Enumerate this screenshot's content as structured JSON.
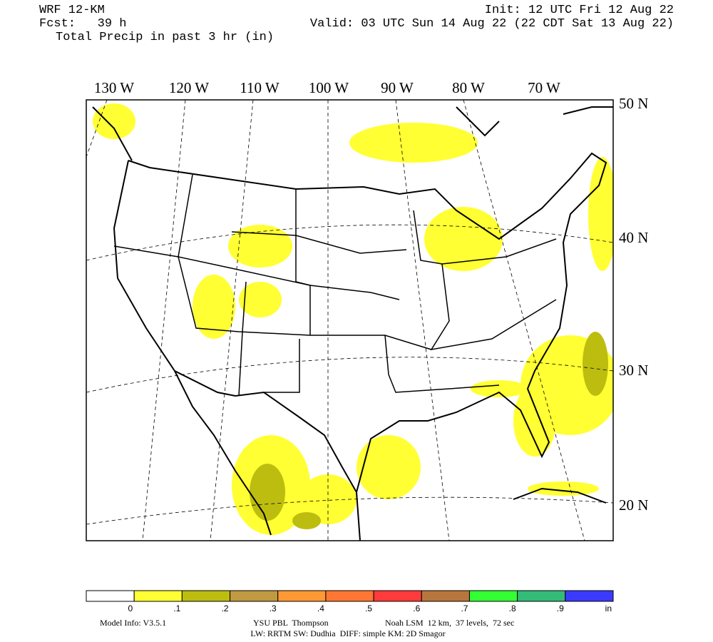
{
  "header": {
    "model": "WRF 12-KM",
    "forecast": "Fcst:   39 h",
    "field": "Total Precip in past 3 hr (in)",
    "init": "Init: 12 UTC Fri 12 Aug 22",
    "valid": "Valid: 03 UTC Sun 14 Aug 22 (22 CDT Sat 13 Aug 22)"
  },
  "map": {
    "longitudes": [
      "130 W",
      "120 W",
      "110 W",
      "100 W",
      "90 W",
      "80 W",
      "70 W"
    ],
    "latitudes": [
      "50 N",
      "40 N",
      "30 N",
      "20 N"
    ]
  },
  "legend": {
    "colors": [
      "#ffffff",
      "#ffff33",
      "#bdbd10",
      "#c09a40",
      "#ff9933",
      "#ff7733",
      "#ff3b3b",
      "#b8763d",
      "#33ff33",
      "#33bb77",
      "#3b3bff"
    ],
    "labels": [
      "0",
      ".1",
      ".2",
      ".3",
      ".4",
      ".5",
      ".6",
      ".7",
      ".8",
      ".9",
      "in"
    ]
  },
  "footer": {
    "model_info": "Model Info: V3.5.1",
    "pbl": "YSU PBL  Thompson",
    "lsm": "Noah LSM  12 km,  37 levels,  72 sec",
    "physics": "LW: RRTM SW: Dudhia  DIFF: simple KM: 2D Smagor"
  }
}
